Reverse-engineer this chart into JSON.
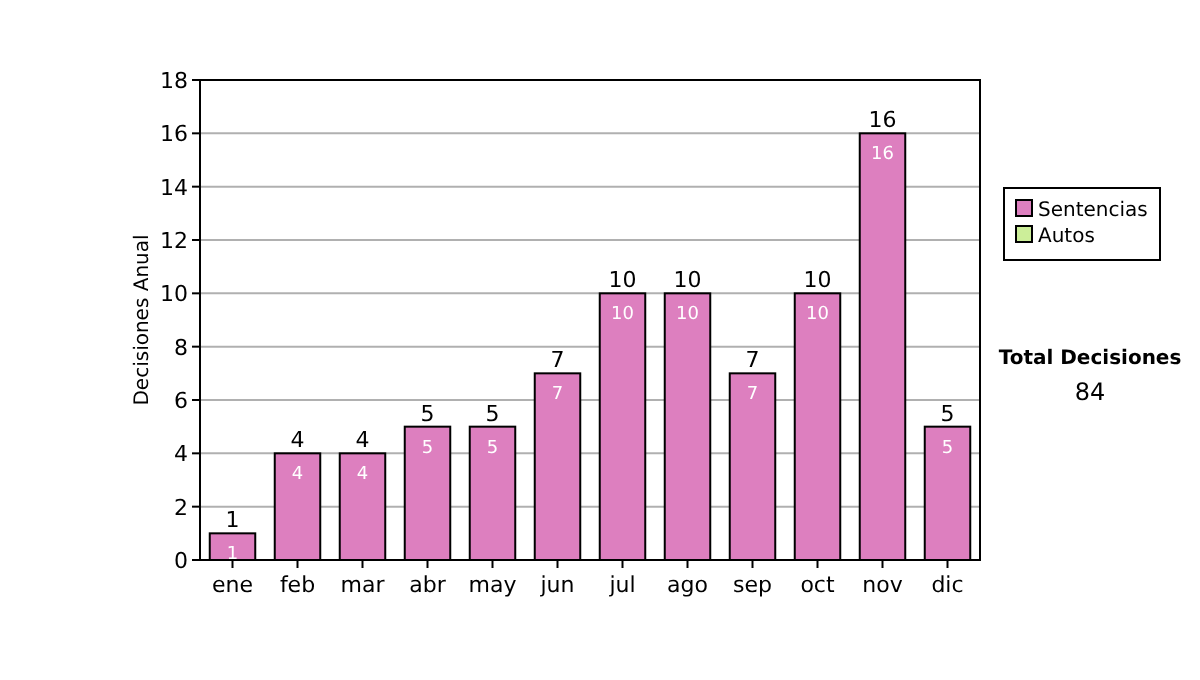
{
  "chart_data": {
    "type": "bar",
    "ylabel": "Decisiones Anual",
    "stacked": true,
    "categories": [
      "ene",
      "feb",
      "mar",
      "abr",
      "may",
      "jun",
      "jul",
      "ago",
      "sep",
      "oct",
      "nov",
      "dic"
    ],
    "series": [
      {
        "name": "Sentencias",
        "color": "#dd7fbf",
        "values": [
          1,
          4,
          4,
          5,
          5,
          7,
          10,
          10,
          7,
          10,
          16,
          5
        ],
        "value_labels": [
          "1",
          "4",
          "4",
          "5",
          "5",
          "7",
          "10",
          "10",
          "7",
          "10",
          "16",
          "5"
        ]
      },
      {
        "name": "Autos",
        "color": "#ccee99",
        "values": [
          0,
          0,
          0,
          0,
          0,
          0,
          0,
          0,
          0,
          0,
          0,
          0
        ]
      }
    ],
    "totals": [
      "1",
      "4",
      "4",
      "5",
      "5",
      "7",
      "10",
      "10",
      "7",
      "10",
      "16",
      "5"
    ],
    "ylim": [
      0,
      18
    ],
    "yticks": [
      0,
      2,
      4,
      6,
      8,
      10,
      12,
      14,
      16,
      18
    ],
    "grid": "y",
    "legend": "right",
    "annotations": [
      "Total Decisiones",
      "84"
    ]
  }
}
